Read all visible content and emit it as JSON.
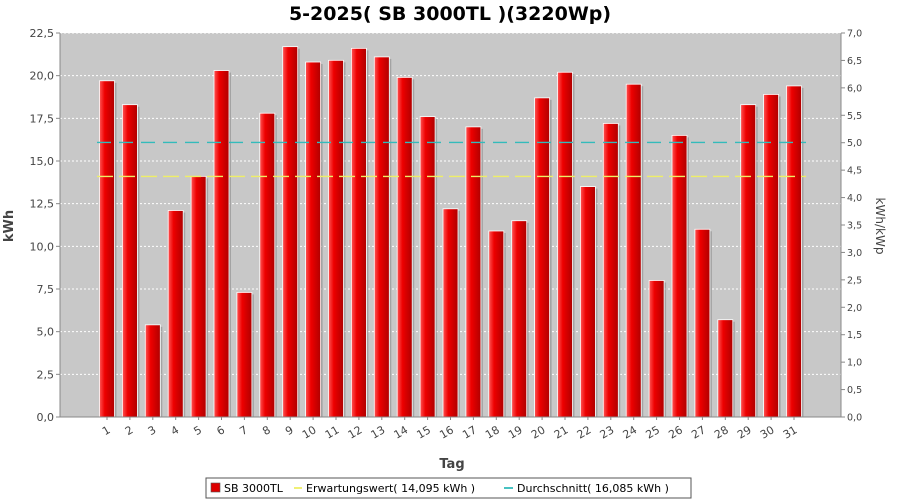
{
  "chart_data": {
    "type": "bar",
    "title": "5-2025( SB 3000TL )(3220Wp)",
    "xlabel": "Tag",
    "ylabel": "kWh",
    "ylabel_right": "kWh/kWp",
    "ylim": [
      0,
      22.5
    ],
    "ylim_right": [
      0,
      7.0
    ],
    "yticks": [
      "0,0",
      "2,5",
      "5,0",
      "7,5",
      "10,0",
      "12,5",
      "15,0",
      "17,5",
      "20,0",
      "22,5"
    ],
    "yticks_right": [
      "0,0",
      "0,5",
      "1,0",
      "1,5",
      "2,0",
      "2,5",
      "3,0",
      "3,5",
      "4,0",
      "4,5",
      "5,0",
      "5,5",
      "6,0",
      "6,5",
      "7,0"
    ],
    "categories": [
      "1",
      "2",
      "3",
      "4",
      "5",
      "6",
      "7",
      "8",
      "9",
      "10",
      "11",
      "12",
      "13",
      "14",
      "15",
      "16",
      "17",
      "18",
      "19",
      "20",
      "21",
      "22",
      "23",
      "24",
      "25",
      "26",
      "27",
      "28",
      "29",
      "30",
      "31"
    ],
    "series": [
      {
        "name": "SB 3000TL",
        "color": "#dd0000",
        "values": [
          19.7,
          18.3,
          5.4,
          12.1,
          14.1,
          20.3,
          7.3,
          17.8,
          21.7,
          20.8,
          20.9,
          21.6,
          21.1,
          19.9,
          17.6,
          12.2,
          17.0,
          10.9,
          11.5,
          18.7,
          20.2,
          13.5,
          17.2,
          19.5,
          8.0,
          16.5,
          11.0,
          5.7,
          18.3,
          18.9,
          19.4
        ]
      }
    ],
    "reference_lines": [
      {
        "name": "Erwartungswert",
        "value": 14.095,
        "color": "#eeee66"
      },
      {
        "name": "Durchschnitt",
        "value": 16.085,
        "color": "#33bbbb"
      }
    ],
    "legend": {
      "position": "bottom",
      "items": [
        {
          "label": "SB 3000TL",
          "color": "#dd0000"
        },
        {
          "label": "Erwartungswert( 14,095 kWh )",
          "color": "#eeee66"
        },
        {
          "label": "Durchschnitt( 16,085 kWh )",
          "color": "#33bbbb"
        }
      ]
    },
    "grid": true,
    "plot_background": "#c8c8c8"
  }
}
